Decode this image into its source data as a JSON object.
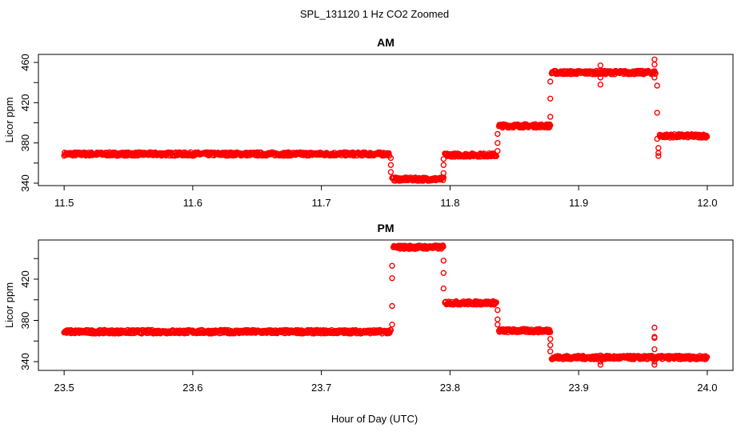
{
  "title": "SPL_131120  1 Hz CO2 Zoomed",
  "xlabel": "Hour of Day (UTC)",
  "point_color": "#ff0000",
  "chart_data": [
    {
      "type": "scatter",
      "title": "AM",
      "ylabel": "Licor ppm",
      "xlim": [
        11.48,
        12.02
      ],
      "ylim": [
        337.6,
        468
      ],
      "xticks": [
        11.5,
        11.6,
        11.7,
        11.8,
        11.9,
        12.0
      ],
      "xtick_labels": [
        "11.5",
        "11.6",
        "11.7",
        "11.8",
        "11.9",
        "12.0"
      ],
      "yticks": [
        340,
        360,
        380,
        400,
        420,
        440,
        460
      ],
      "ytick_labels": [
        "340",
        "",
        "380",
        "",
        "420",
        "",
        "460"
      ],
      "levels": [
        {
          "x_start": 11.5,
          "x_end": 11.753,
          "y": 369
        },
        {
          "x_start": 11.755,
          "x_end": 11.795,
          "y": 344
        },
        {
          "x_start": 11.796,
          "x_end": 11.836,
          "y": 368
        },
        {
          "x_start": 11.838,
          "x_end": 11.878,
          "y": 397
        },
        {
          "x_start": 11.879,
          "x_end": 11.96,
          "y": 450
        },
        {
          "x_start": 11.963,
          "x_end": 12.0,
          "y": 387
        }
      ],
      "points": [
        {
          "x": 11.754,
          "y": 365
        },
        {
          "x": 11.754,
          "y": 358
        },
        {
          "x": 11.754,
          "y": 351
        },
        {
          "x": 11.795,
          "y": 350
        },
        {
          "x": 11.795,
          "y": 358
        },
        {
          "x": 11.795,
          "y": 364
        },
        {
          "x": 11.837,
          "y": 372
        },
        {
          "x": 11.837,
          "y": 380
        },
        {
          "x": 11.837,
          "y": 389
        },
        {
          "x": 11.878,
          "y": 406
        },
        {
          "x": 11.878,
          "y": 424
        },
        {
          "x": 11.878,
          "y": 441
        },
        {
          "x": 11.917,
          "y": 457
        },
        {
          "x": 11.917,
          "y": 445
        },
        {
          "x": 11.917,
          "y": 438
        },
        {
          "x": 11.959,
          "y": 463
        },
        {
          "x": 11.959,
          "y": 458
        },
        {
          "x": 11.959,
          "y": 445
        },
        {
          "x": 11.961,
          "y": 437
        },
        {
          "x": 11.961,
          "y": 410
        },
        {
          "x": 11.961,
          "y": 384
        },
        {
          "x": 11.962,
          "y": 375
        },
        {
          "x": 11.962,
          "y": 370
        },
        {
          "x": 11.962,
          "y": 367
        }
      ]
    },
    {
      "type": "scatter",
      "title": "PM",
      "ylabel": "Licor ppm",
      "xlim": [
        23.48,
        24.02
      ],
      "ylim": [
        331.5,
        458
      ],
      "xticks": [
        23.5,
        23.6,
        23.7,
        23.8,
        23.9,
        24.0
      ],
      "xtick_labels": [
        "23.5",
        "23.6",
        "23.7",
        "23.8",
        "23.9",
        "24.0"
      ],
      "yticks": [
        340,
        360,
        380,
        400,
        420,
        440
      ],
      "ytick_labels": [
        "340",
        "",
        "380",
        "",
        "420",
        ""
      ],
      "levels": [
        {
          "x_start": 23.5,
          "x_end": 23.754,
          "y": 369
        },
        {
          "x_start": 23.756,
          "x_end": 23.795,
          "y": 451
        },
        {
          "x_start": 23.796,
          "x_end": 23.836,
          "y": 397
        },
        {
          "x_start": 23.838,
          "x_end": 23.878,
          "y": 370
        },
        {
          "x_start": 23.879,
          "x_end": 24.0,
          "y": 344
        }
      ],
      "points": [
        {
          "x": 23.755,
          "y": 376
        },
        {
          "x": 23.755,
          "y": 394
        },
        {
          "x": 23.755,
          "y": 421
        },
        {
          "x": 23.755,
          "y": 433
        },
        {
          "x": 23.795,
          "y": 438
        },
        {
          "x": 23.795,
          "y": 426
        },
        {
          "x": 23.795,
          "y": 411
        },
        {
          "x": 23.837,
          "y": 390
        },
        {
          "x": 23.837,
          "y": 381
        },
        {
          "x": 23.837,
          "y": 376
        },
        {
          "x": 23.878,
          "y": 362
        },
        {
          "x": 23.878,
          "y": 356
        },
        {
          "x": 23.878,
          "y": 350
        },
        {
          "x": 23.917,
          "y": 346
        },
        {
          "x": 23.917,
          "y": 337
        },
        {
          "x": 23.917,
          "y": 340
        },
        {
          "x": 23.959,
          "y": 373
        },
        {
          "x": 23.959,
          "y": 364
        },
        {
          "x": 23.959,
          "y": 363
        },
        {
          "x": 23.959,
          "y": 352
        },
        {
          "x": 23.959,
          "y": 337
        },
        {
          "x": 23.959,
          "y": 340
        }
      ]
    }
  ]
}
